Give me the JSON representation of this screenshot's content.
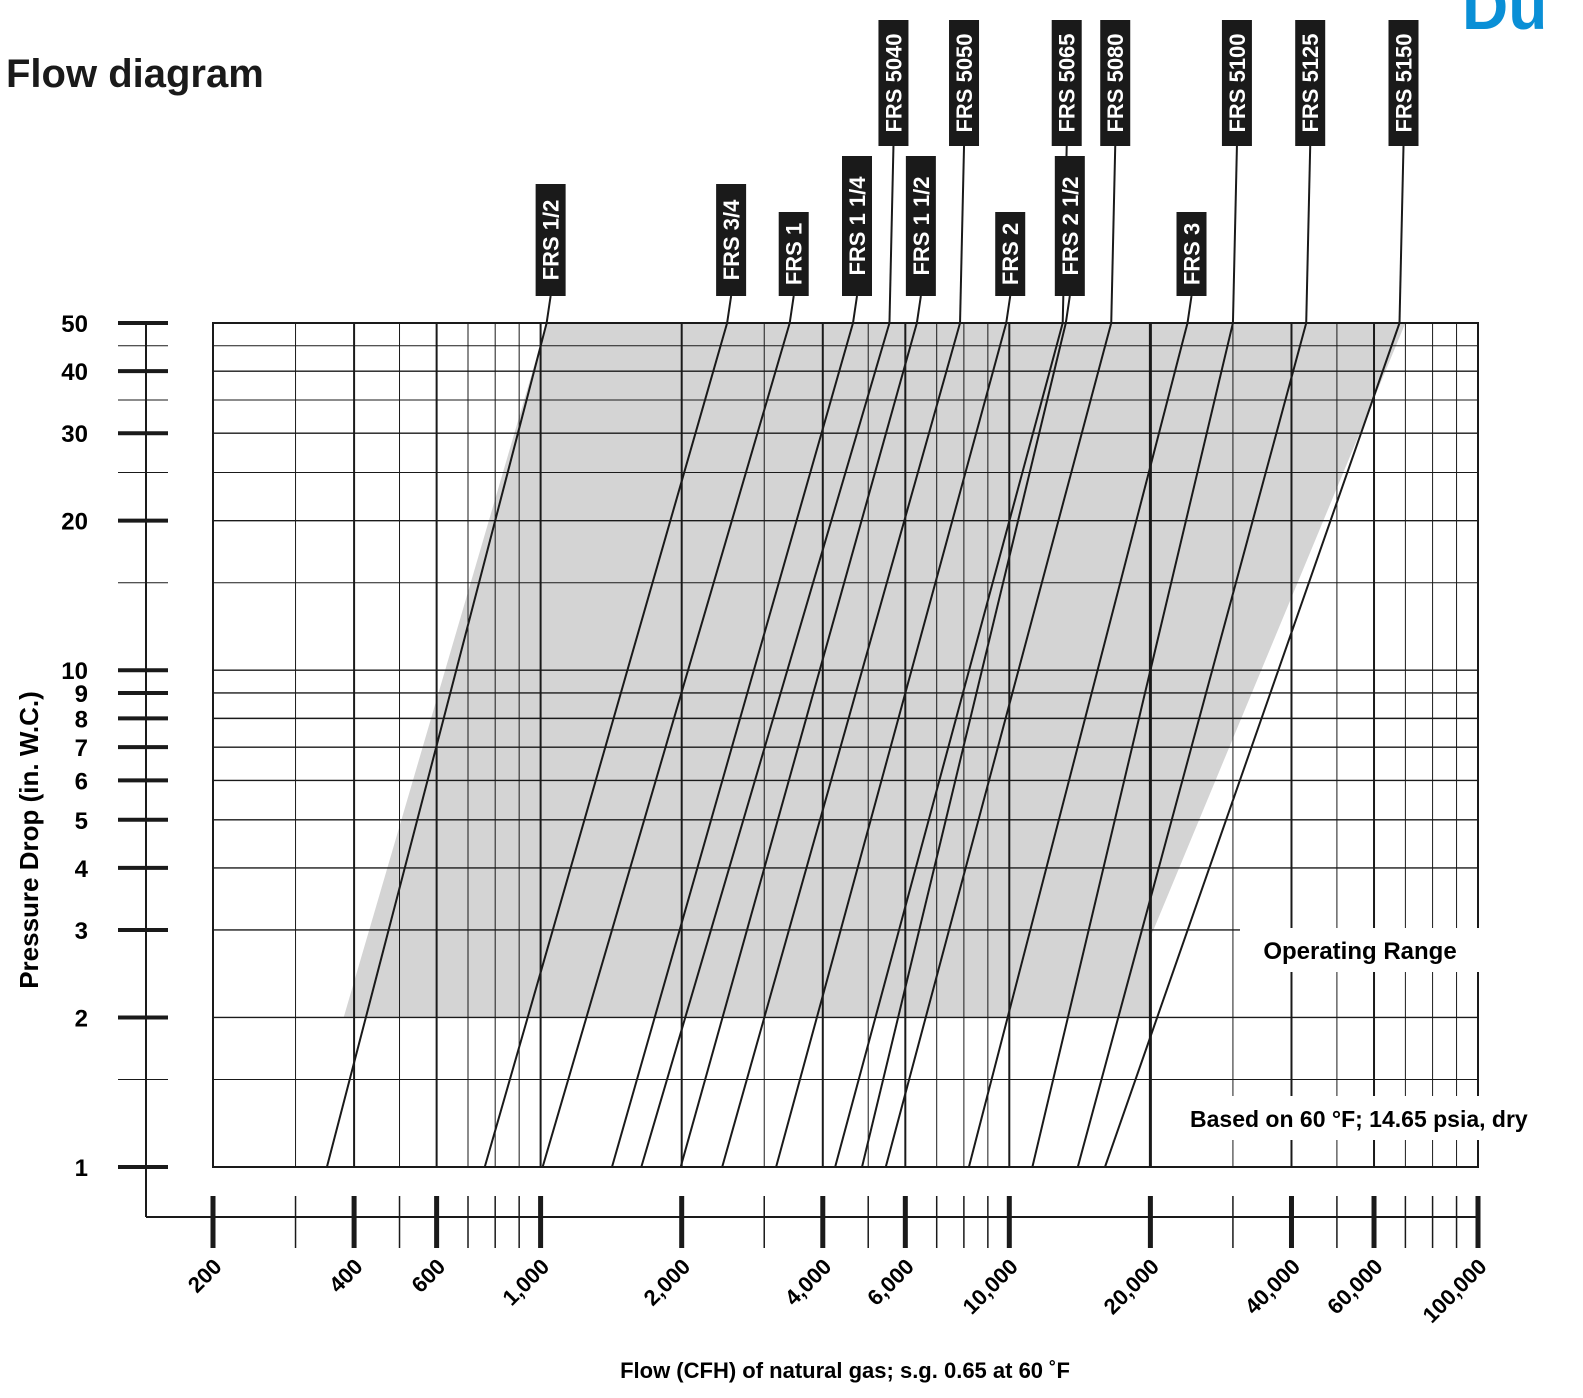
{
  "page": {
    "title": "Flow diagram",
    "brand_fragment": "Du",
    "brand_color": "#0a8fd6"
  },
  "chart_data": {
    "type": "line",
    "title": "",
    "xlabel": "Flow (CFH) of natural gas; s.g. 0.65 at 60 ˚F",
    "ylabel": "Pressure Drop (in. W.C.)",
    "x_scale": "log",
    "y_scale": "log",
    "xlim": [
      200,
      100000
    ],
    "ylim": [
      1,
      50
    ],
    "x_ticks": [
      {
        "value": 200,
        "label": "200"
      },
      {
        "value": 400,
        "label": "400"
      },
      {
        "value": 600,
        "label": "600"
      },
      {
        "value": 1000,
        "label": "1,000"
      },
      {
        "value": 2000,
        "label": "2,000"
      },
      {
        "value": 4000,
        "label": "4,000"
      },
      {
        "value": 6000,
        "label": "6,000"
      },
      {
        "value": 10000,
        "label": "10,000"
      },
      {
        "value": 20000,
        "label": "20,000"
      },
      {
        "value": 40000,
        "label": "40,000"
      },
      {
        "value": 60000,
        "label": "60,000"
      },
      {
        "value": 100000,
        "label": "100,000"
      }
    ],
    "y_ticks": [
      {
        "value": 1,
        "label": "1"
      },
      {
        "value": 2,
        "label": "2"
      },
      {
        "value": 3,
        "label": "3"
      },
      {
        "value": 4,
        "label": "4"
      },
      {
        "value": 5,
        "label": "5"
      },
      {
        "value": 6,
        "label": "6"
      },
      {
        "value": 7,
        "label": "7"
      },
      {
        "value": 8,
        "label": "8"
      },
      {
        "value": 9,
        "label": "9"
      },
      {
        "value": 10,
        "label": "10"
      },
      {
        "value": 20,
        "label": "20"
      },
      {
        "value": 30,
        "label": "30"
      },
      {
        "value": 40,
        "label": "40"
      },
      {
        "value": 50,
        "label": "50"
      }
    ],
    "grid": true,
    "operating_range": {
      "label": "Operating Range",
      "pressure_min": 2,
      "pressure_max": 50,
      "left_edge": [
        [
          380,
          2
        ],
        [
          1030,
          50
        ]
      ],
      "right_edge": [
        [
          20000,
          2
        ],
        [
          20000,
          50
        ]
      ],
      "extension_edge": [
        [
          20000,
          2.9
        ],
        [
          70000,
          50
        ]
      ],
      "fill": "#d4d4d4"
    },
    "note": "Based on 60 °F; 14.65 psia, dry",
    "series": [
      {
        "name": "FRS 1/2",
        "label_row": "lower",
        "label_fill": "black",
        "points": [
          [
            350,
            1
          ],
          [
            1030,
            50
          ]
        ]
      },
      {
        "name": "FRS 3/4",
        "label_row": "lower",
        "label_fill": "black",
        "points": [
          [
            760,
            1
          ],
          [
            2500,
            50
          ]
        ]
      },
      {
        "name": "FRS 1",
        "label_row": "lower",
        "label_fill": "black",
        "points": [
          [
            1010,
            1
          ],
          [
            3400,
            50
          ]
        ]
      },
      {
        "name": "FRS 1 1/4",
        "label_row": "lower",
        "label_fill": "black",
        "points": [
          [
            1420,
            1
          ],
          [
            4640,
            50
          ]
        ]
      },
      {
        "name": "FRS 5040",
        "label_row": "upper",
        "label_fill": "black",
        "points": [
          [
            1640,
            1
          ],
          [
            5550,
            50
          ]
        ]
      },
      {
        "name": "FRS 1 1/2",
        "label_row": "lower",
        "label_fill": "black",
        "points": [
          [
            1990,
            1
          ],
          [
            6350,
            50
          ]
        ]
      },
      {
        "name": "FRS 5050",
        "label_row": "upper",
        "label_fill": "black",
        "points": [
          [
            2440,
            1
          ],
          [
            7850,
            50
          ]
        ]
      },
      {
        "name": "FRS 2",
        "label_row": "lower",
        "label_fill": "black",
        "points": [
          [
            3180,
            1
          ],
          [
            9850,
            50
          ]
        ]
      },
      {
        "name": "FRS 5065",
        "label_row": "upper",
        "label_fill": "black",
        "points": [
          [
            4250,
            1
          ],
          [
            13000,
            50
          ]
        ]
      },
      {
        "name": "FRS 2 1/2",
        "label_row": "lower",
        "label_fill": "black",
        "points": [
          [
            4850,
            1
          ],
          [
            13200,
            50
          ]
        ]
      },
      {
        "name": "FRS 5080",
        "label_row": "upper",
        "label_fill": "black",
        "points": [
          [
            5450,
            1
          ],
          [
            16500,
            50
          ]
        ]
      },
      {
        "name": "FRS 3",
        "label_row": "lower",
        "label_fill": "black",
        "points": [
          [
            8200,
            1
          ],
          [
            24000,
            50
          ]
        ]
      },
      {
        "name": "FRS 5100",
        "label_row": "upper",
        "label_fill": "black",
        "points": [
          [
            11200,
            1
          ],
          [
            30000,
            50
          ]
        ]
      },
      {
        "name": "FRS 5125",
        "label_row": "upper",
        "label_fill": "black",
        "points": [
          [
            14000,
            1
          ],
          [
            43000,
            50
          ]
        ]
      },
      {
        "name": "FRS 5150",
        "label_row": "upper",
        "label_fill": "black",
        "points": [
          [
            16000,
            1
          ],
          [
            68000,
            50
          ]
        ]
      }
    ]
  }
}
